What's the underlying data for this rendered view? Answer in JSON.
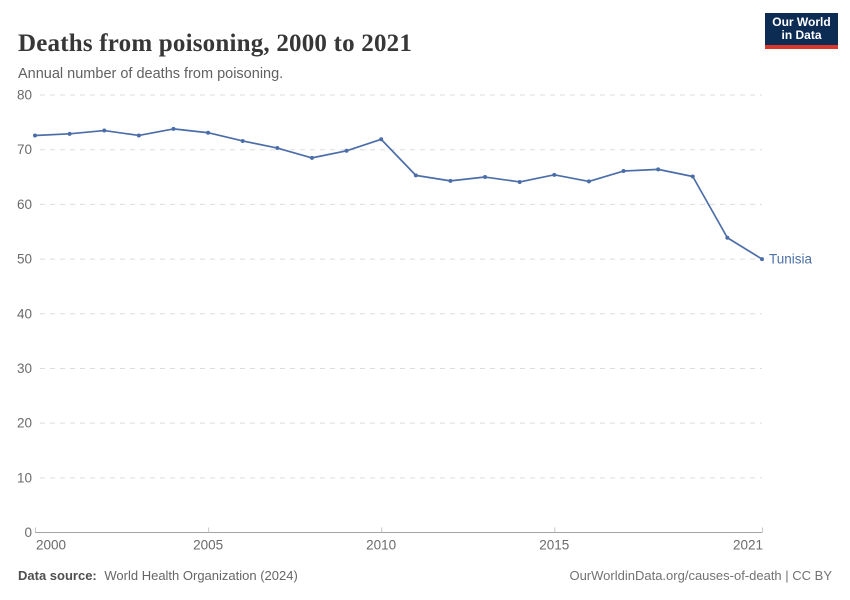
{
  "header": {
    "title": "Deaths from poisoning, 2000 to 2021",
    "subtitle": "Annual number of deaths from poisoning.",
    "logo": {
      "line1": "Our World",
      "line2": "in Data"
    }
  },
  "chart_data": {
    "type": "line",
    "title": "Deaths from poisoning, 2000 to 2021",
    "xlabel": "",
    "ylabel": "",
    "xlim": [
      2000,
      2021
    ],
    "ylim": [
      0,
      80
    ],
    "xticks": [
      2000,
      2005,
      2010,
      2015,
      2021
    ],
    "yticks": [
      0,
      10,
      20,
      30,
      40,
      50,
      60,
      70,
      80
    ],
    "grid": "horizontal-dashed",
    "legend_position": "end-of-line-label",
    "series": [
      {
        "name": "Tunisia",
        "color": "#4c6ea8",
        "label_color": "#4d6fa5",
        "x": [
          2000,
          2001,
          2002,
          2003,
          2004,
          2005,
          2006,
          2007,
          2008,
          2009,
          2010,
          2011,
          2012,
          2013,
          2014,
          2015,
          2016,
          2017,
          2018,
          2019,
          2020,
          2021
        ],
        "values": [
          72.6,
          72.9,
          73.5,
          72.6,
          73.8,
          73.1,
          71.6,
          70.3,
          68.5,
          69.8,
          71.9,
          65.3,
          64.3,
          65.0,
          64.1,
          65.4,
          64.2,
          66.1,
          66.4,
          65.1,
          53.9,
          50.0
        ]
      }
    ]
  },
  "colors": {
    "line": "#4c6ea8",
    "grid": "#dddddd",
    "axis": "#a3a3a3",
    "tick_text": "#6b6b6b",
    "logo_bg": "#0d2c54",
    "logo_red": "#dc352c"
  },
  "footer": {
    "datasource_label": "Data source:",
    "datasource_value": "World Health Organization (2024)",
    "link": "OurWorldinData.org/causes-of-death | CC BY"
  }
}
